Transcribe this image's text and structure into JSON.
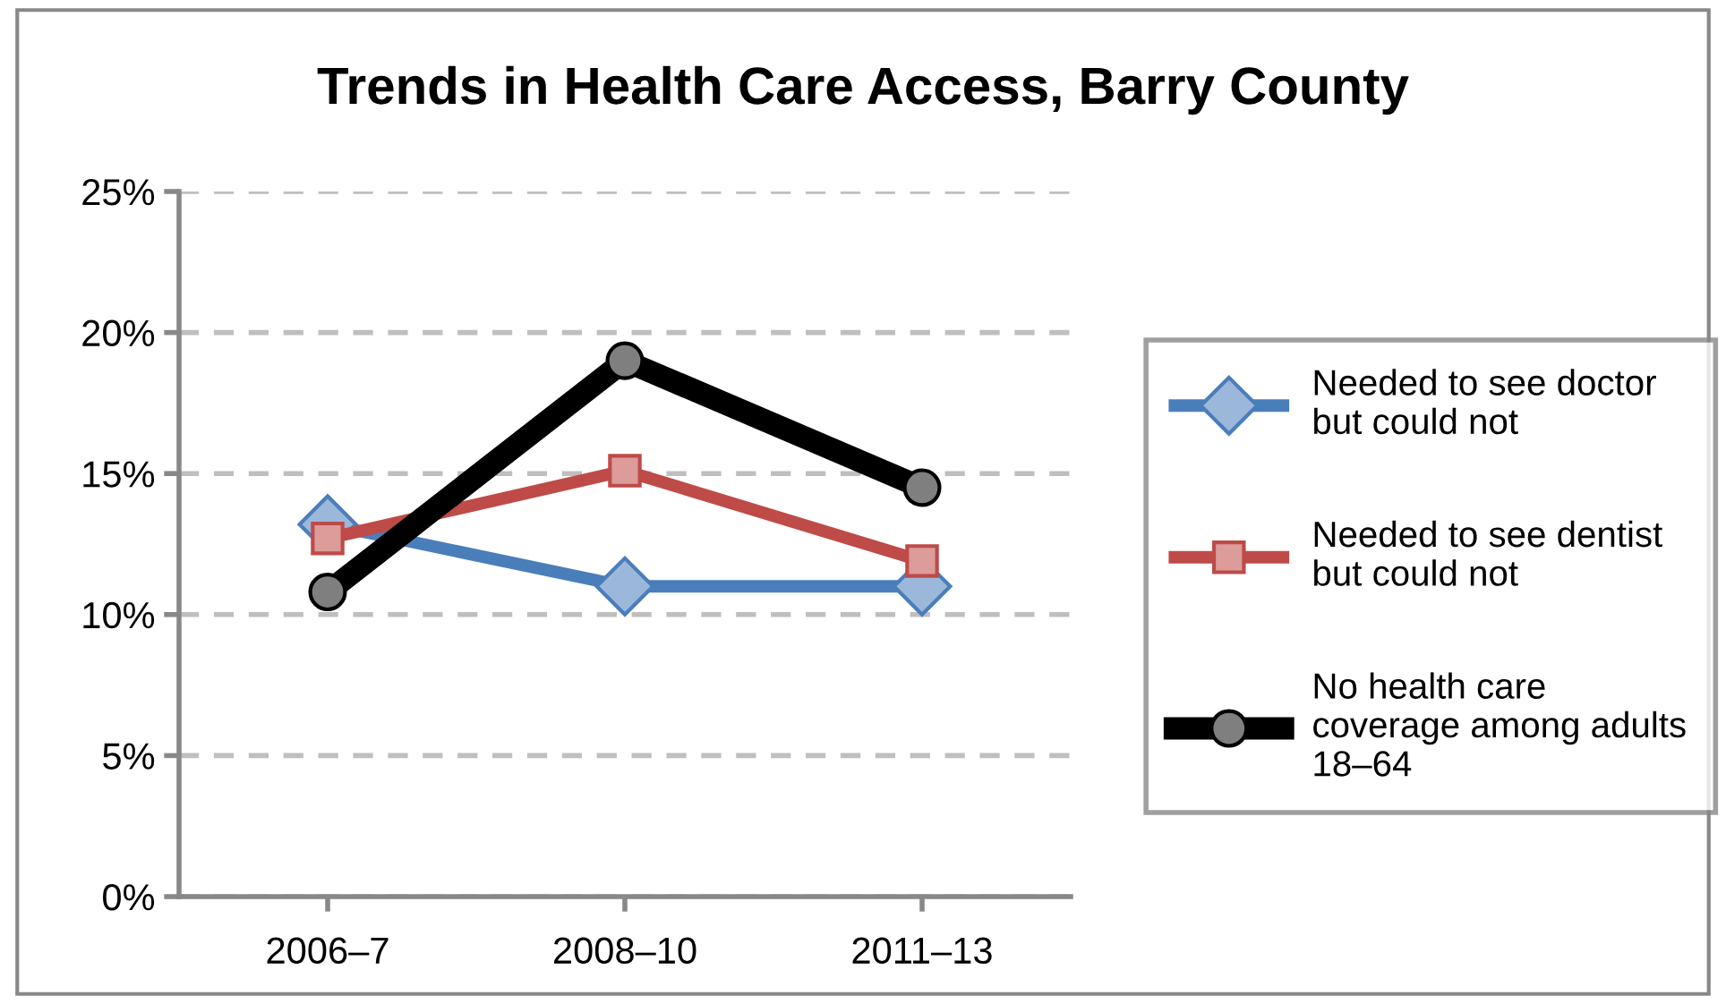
{
  "chart_data": {
    "type": "line",
    "title": "Trends in Health Care Access, Barry County",
    "categories": [
      "2006–7",
      "2008–10",
      "2011–13"
    ],
    "series": [
      {
        "name": "Needed to see doctor but could not",
        "color": "#4a7ebb",
        "marker": "diamond",
        "values": [
          13.2,
          11.0,
          11.0
        ]
      },
      {
        "name": "Needed to see dentist but could not",
        "color": "#be4b48",
        "marker": "square",
        "values": [
          12.7,
          15.1,
          11.9
        ]
      },
      {
        "name": "No health care coverage among adults 18–64",
        "color": "#000000",
        "marker": "circle",
        "values": [
          10.8,
          19.0,
          14.5
        ]
      }
    ],
    "ylim": [
      0,
      25
    ],
    "yticks": [
      {
        "value": 0,
        "label": "0%"
      },
      {
        "value": 5,
        "label": "5%"
      },
      {
        "value": 10,
        "label": "10%"
      },
      {
        "value": 15,
        "label": "15%"
      },
      {
        "value": 20,
        "label": "20%"
      },
      {
        "value": 25,
        "label": "25%"
      }
    ],
    "grid": "y",
    "legend": "right",
    "line_style": "solid"
  }
}
